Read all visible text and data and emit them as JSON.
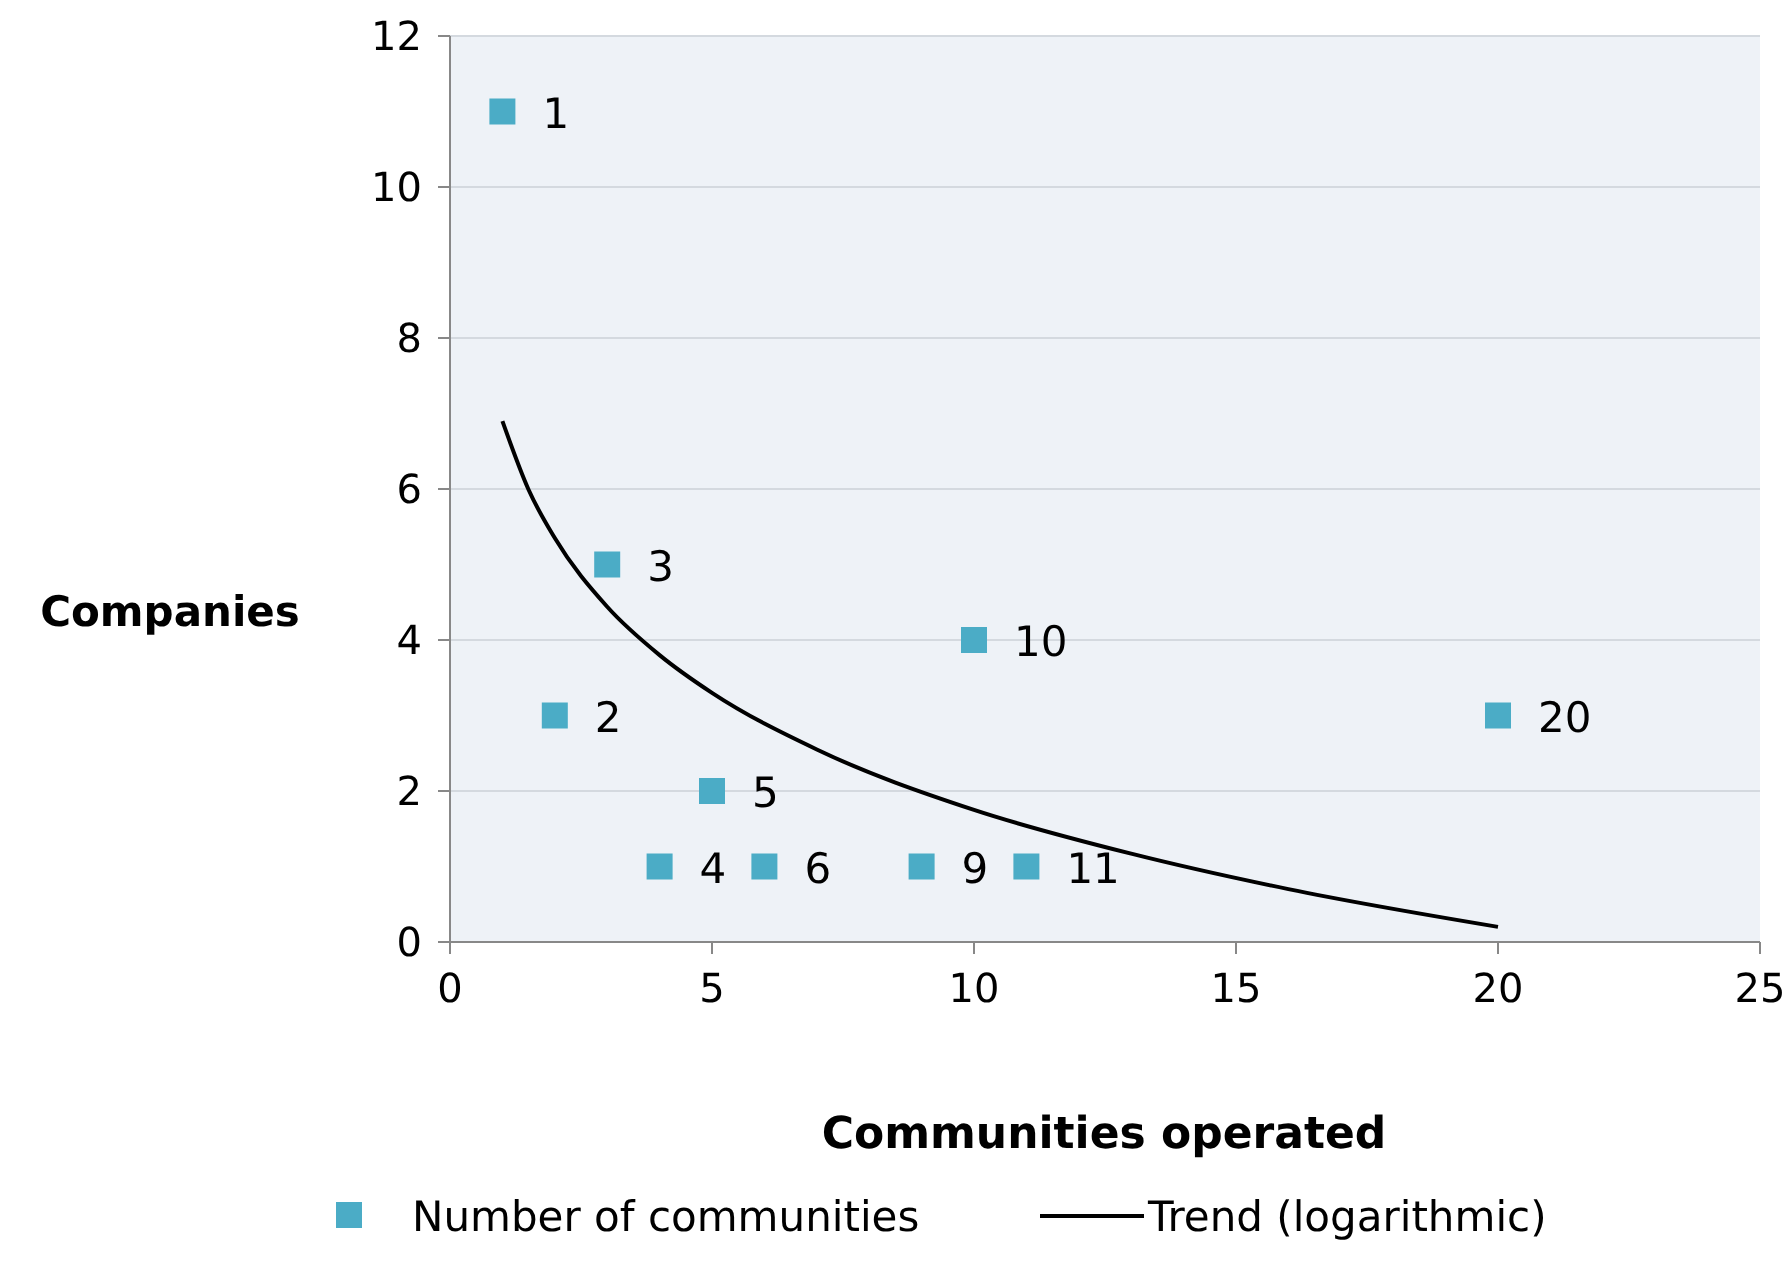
{
  "chart_data": {
    "type": "scatter",
    "xlabel": "Communities operated",
    "ylabel": "Companies",
    "x": [
      1,
      2,
      3,
      4,
      5,
      6,
      9,
      10,
      11,
      20
    ],
    "series": [
      {
        "name": "Number of communities",
        "color": "#4bacc6",
        "marker": "square",
        "values": [
          11,
          3,
          5,
          1,
          2,
          1,
          1,
          4,
          1,
          3
        ]
      },
      {
        "name": "Trend (logarithmic)",
        "type": "line",
        "color": "#000000",
        "marker": "none",
        "x": [
          1,
          1.5,
          2,
          3,
          4,
          5,
          7,
          10,
          13,
          16,
          20
        ],
        "values": [
          6.9,
          5.99,
          5.35,
          4.44,
          3.8,
          3.3,
          2.55,
          1.75,
          1.17,
          0.7,
          0.2
        ]
      }
    ],
    "annotations": [
      {
        "text": "1",
        "x": 1,
        "y": 11
      },
      {
        "text": "2",
        "x": 2,
        "y": 3
      },
      {
        "text": "3",
        "x": 3,
        "y": 5
      },
      {
        "text": "4",
        "x": 4,
        "y": 1
      },
      {
        "text": "5",
        "x": 5,
        "y": 2
      },
      {
        "text": "6",
        "x": 6,
        "y": 1
      },
      {
        "text": "9",
        "x": 9,
        "y": 1
      },
      {
        "text": "10",
        "x": 10,
        "y": 4
      },
      {
        "text": "11",
        "x": 11,
        "y": 1
      },
      {
        "text": "20",
        "x": 20,
        "y": 3
      }
    ],
    "xlim": [
      0,
      25
    ],
    "xticks": [
      0,
      5,
      10,
      15,
      20,
      25
    ],
    "ylim": [
      0,
      12
    ],
    "yticks": [
      0,
      2,
      4,
      6,
      8,
      10,
      12
    ],
    "grid": "y",
    "legend": "bottom"
  }
}
